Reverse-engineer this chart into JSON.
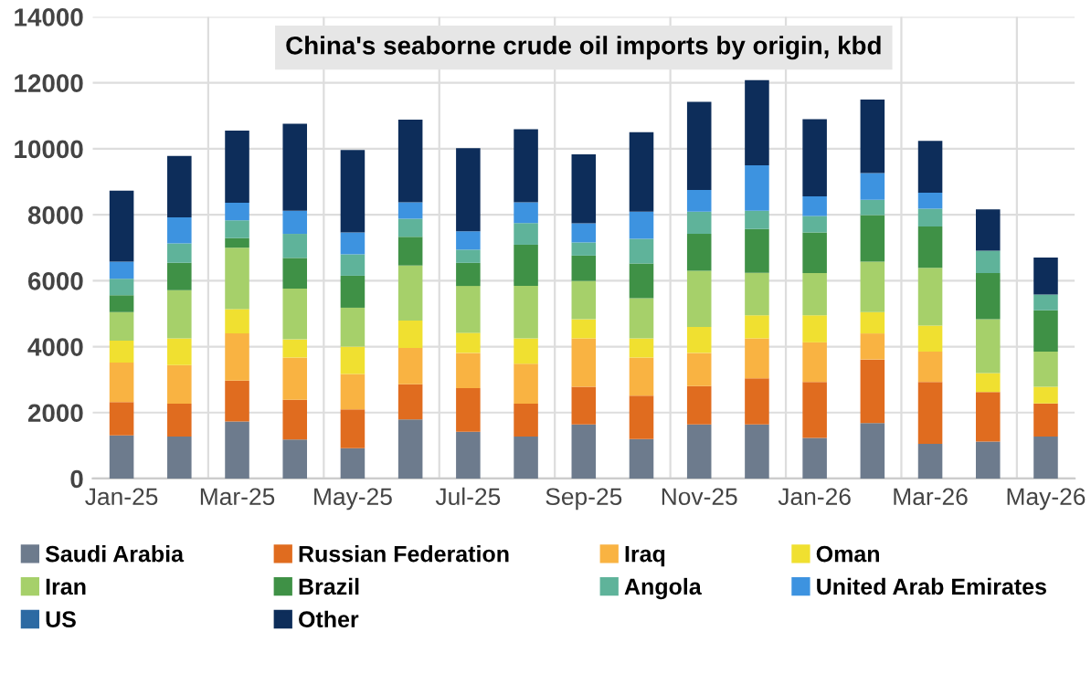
{
  "chart_data": {
    "type": "bar",
    "title": "China's seaborne crude oil imports by origin, kbd",
    "stacked": true,
    "categories": [
      "Jan-25",
      null,
      "Mar-25",
      null,
      "May-25",
      null,
      "Jul-25",
      null,
      "Sep-25",
      null,
      "Nov-25",
      null,
      "Jan-26",
      null,
      "Mar-26",
      null,
      "May-26"
    ],
    "series": [
      {
        "name": "Saudi Arabia",
        "color": "#6d7b8d",
        "values": [
          1310,
          1270,
          1730,
          1180,
          920,
          1790,
          1420,
          1270,
          1640,
          1200,
          1640,
          1640,
          1230,
          1680,
          1050,
          1120,
          1270
        ]
      },
      {
        "name": "Russian Federation",
        "color": "#e06c1f",
        "values": [
          1010,
          1000,
          1240,
          1210,
          1180,
          1070,
          1320,
          1000,
          1140,
          1310,
          1160,
          1400,
          1700,
          1930,
          1880,
          1500,
          1010
        ]
      },
      {
        "name": "Iraq",
        "color": "#f9b342",
        "values": [
          1200,
          1170,
          1430,
          1280,
          1070,
          1100,
          1070,
          1210,
          1470,
          1160,
          1010,
          1210,
          1200,
          790,
          920,
          0,
          0
        ]
      },
      {
        "name": "Oman",
        "color": "#f0e030",
        "values": [
          660,
          810,
          740,
          550,
          830,
          830,
          610,
          770,
          580,
          580,
          790,
          700,
          820,
          650,
          790,
          580,
          500
        ]
      },
      {
        "name": "Iran",
        "color": "#a6d06a",
        "values": [
          870,
          1460,
          1860,
          1540,
          1180,
          1670,
          1420,
          1590,
          1160,
          1220,
          1700,
          1290,
          1280,
          1530,
          1750,
          1630,
          1070
        ]
      },
      {
        "name": "Brazil",
        "color": "#3f9146",
        "values": [
          510,
          830,
          290,
          930,
          970,
          870,
          700,
          1250,
          770,
          1050,
          1120,
          1330,
          1230,
          1410,
          1250,
          1400,
          1250
        ]
      },
      {
        "name": "Angola",
        "color": "#5fb39a",
        "values": [
          500,
          590,
          540,
          730,
          650,
          550,
          400,
          660,
          400,
          750,
          670,
          550,
          500,
          460,
          540,
          680,
          480
        ]
      },
      {
        "name": "United Arab Emirates",
        "color": "#3d93e0",
        "values": [
          520,
          790,
          530,
          700,
          660,
          500,
          560,
          630,
          580,
          820,
          660,
          1380,
          600,
          810,
          490,
          0,
          0
        ]
      },
      {
        "name": "US",
        "color": "#2d6aa3",
        "values": [
          0,
          0,
          0,
          0,
          0,
          0,
          0,
          0,
          0,
          0,
          0,
          0,
          0,
          0,
          0,
          0,
          0
        ]
      },
      {
        "name": "Other",
        "color": "#0d2d5a",
        "values": [
          2150,
          1860,
          2190,
          2640,
          2500,
          2500,
          2520,
          2210,
          2090,
          2410,
          2670,
          2580,
          2340,
          2230,
          1570,
          1250,
          1120
        ]
      }
    ],
    "ylim": [
      0,
      14000
    ],
    "yticks": [
      0,
      2000,
      4000,
      6000,
      8000,
      10000,
      12000,
      14000
    ],
    "grid": true,
    "legend": "bottom"
  }
}
